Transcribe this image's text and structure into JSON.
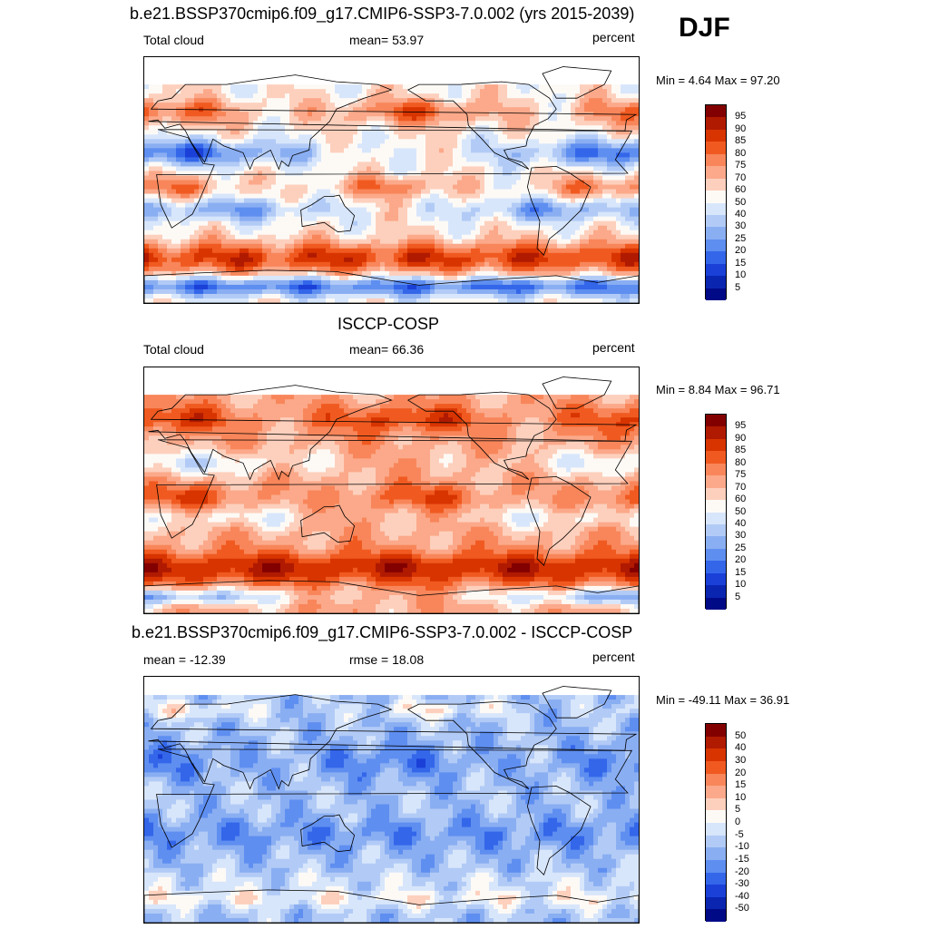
{
  "season": "DJF",
  "panels": [
    {
      "title": "b.e21.BSSP370cmip6.f09_g17.CMIP6-SSP3-7.0.002 (yrs 2015-2039)",
      "left_label": "Total cloud",
      "center_label": "mean=  53.97",
      "right_label": "percent",
      "minmax": "Min =   4.64 Max =  97.20",
      "colorbar_labels": [
        "95",
        "90",
        "85",
        "80",
        "75",
        "70",
        "60",
        "50",
        "40",
        "30",
        "25",
        "20",
        "15",
        "10",
        "5"
      ]
    },
    {
      "title": "ISCCP-COSP",
      "left_label": "Total cloud",
      "center_label": "mean=  66.36",
      "right_label": "percent",
      "minmax": "Min =   8.84 Max =  96.71",
      "colorbar_labels": [
        "95",
        "90",
        "85",
        "80",
        "75",
        "70",
        "60",
        "50",
        "40",
        "30",
        "25",
        "20",
        "15",
        "10",
        "5"
      ]
    },
    {
      "title": "b.e21.BSSP370cmip6.f09_g17.CMIP6-SSP3-7.0.002 - ISCCP-COSP",
      "left_label": "mean = -12.39",
      "center_label": "rmse =  18.08",
      "right_label": "percent",
      "minmax": "Min = -49.11 Max =  36.91",
      "colorbar_labels": [
        "50",
        "40",
        "30",
        "20",
        "15",
        "10",
        "5",
        "0",
        "-5",
        "-10",
        "-15",
        "-20",
        "-30",
        "-40",
        "-50"
      ]
    }
  ],
  "colors": {
    "abs_scale": [
      "#830000",
      "#b01a00",
      "#d83400",
      "#f05a20",
      "#f8865a",
      "#fba98a",
      "#fdd0bd",
      "#fdfaf6",
      "#d8e6fb",
      "#b2cbf6",
      "#8aaef2",
      "#5e8ef0",
      "#3466ea",
      "#1a40d8",
      "#0a25b0",
      "#000a86"
    ],
    "diff_scale": [
      "#830000",
      "#b01a00",
      "#d83400",
      "#f05a20",
      "#f8865a",
      "#fba98a",
      "#fdd0bd",
      "#fdfaf6",
      "#d8e6fb",
      "#b2cbf6",
      "#8aaef2",
      "#5e8ef0",
      "#3466ea",
      "#1a40d8",
      "#0a25b0",
      "#000a86"
    ],
    "no_data": "#ffffff",
    "coastline": "#000000"
  }
}
